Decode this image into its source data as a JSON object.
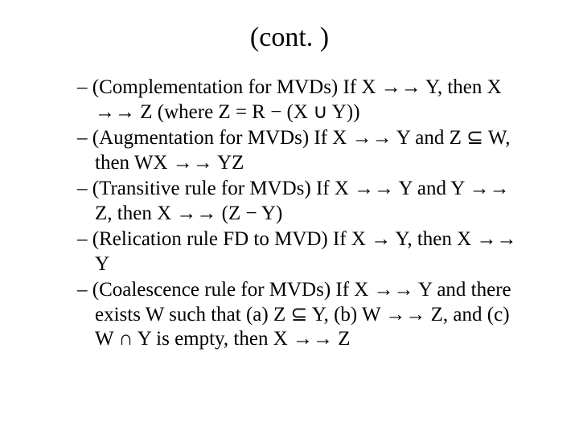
{
  "title": "(cont. )",
  "bullets": [
    "– (Complementation for MVDs) If X →→ Y, then X →→ Z (where Z = R − (X ∪ Y))",
    "– (Augmentation for MVDs) If X →→ Y and Z ⊆ W, then WX →→ YZ",
    "– (Transitive rule for MVDs) If X →→ Y and Y →→ Z, then X →→ (Z − Y)",
    "– (Relication rule FD to MVD) If X → Y, then X →→ Y",
    "– (Coalescence rule for MVDs) If X →→ Y and there exists W such that (a) Z ⊆ Y, (b) W →→ Z, and (c) W ∩ Y is empty, then X →→ Z"
  ],
  "colors": {
    "background": "#ffffff",
    "text": "#000000"
  },
  "fontsizes": {
    "title": 34,
    "body": 25
  }
}
